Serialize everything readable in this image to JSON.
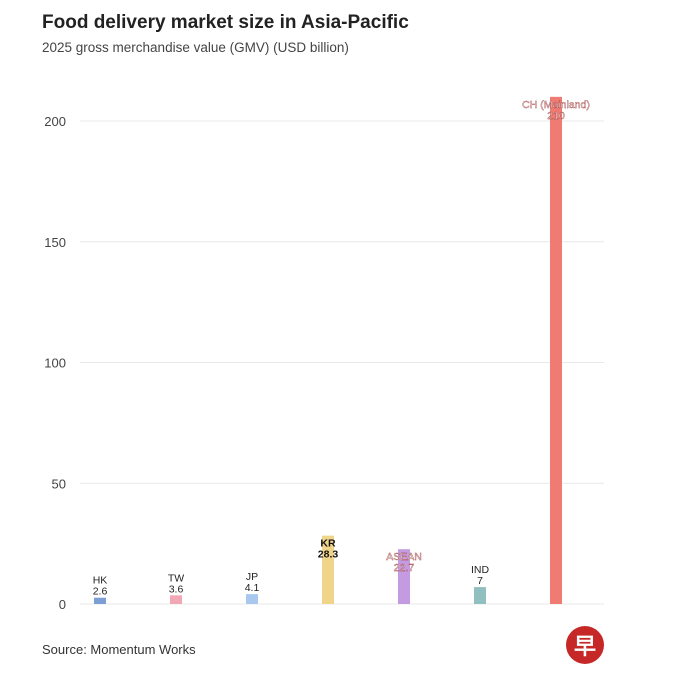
{
  "title": "Food delivery market size in Asia-Pacific",
  "subtitle": "2025 gross merchandise value (GMV) (USD billion)",
  "source": "Source: Momentum Works",
  "logo_text": "早",
  "chart_data": {
    "type": "bar",
    "title": "Food delivery market size in Asia-Pacific",
    "subtitle": "2025 gross merchandise value (GMV) (USD billion)",
    "categories": [
      "HK",
      "TW",
      "JP",
      "KR",
      "ASEAN",
      "IND",
      "CH (Mainland)"
    ],
    "values": [
      2.6,
      3.6,
      4.1,
      28.3,
      22.7,
      7,
      210
    ],
    "value_labels": [
      "2.6",
      "3.6",
      "4.1",
      "28.3",
      "22.7",
      "7",
      "210"
    ],
    "colors": [
      "#7b9fd4",
      "#f2a7b4",
      "#a9c8f0",
      "#f0d48a",
      "#c49be0",
      "#8fbfbf",
      "#ef7b73"
    ],
    "ylim": [
      0,
      220
    ],
    "yticks": [
      0,
      50,
      100,
      150,
      200
    ],
    "xlabel": "",
    "ylabel": "",
    "grid": true,
    "legend": "none"
  }
}
